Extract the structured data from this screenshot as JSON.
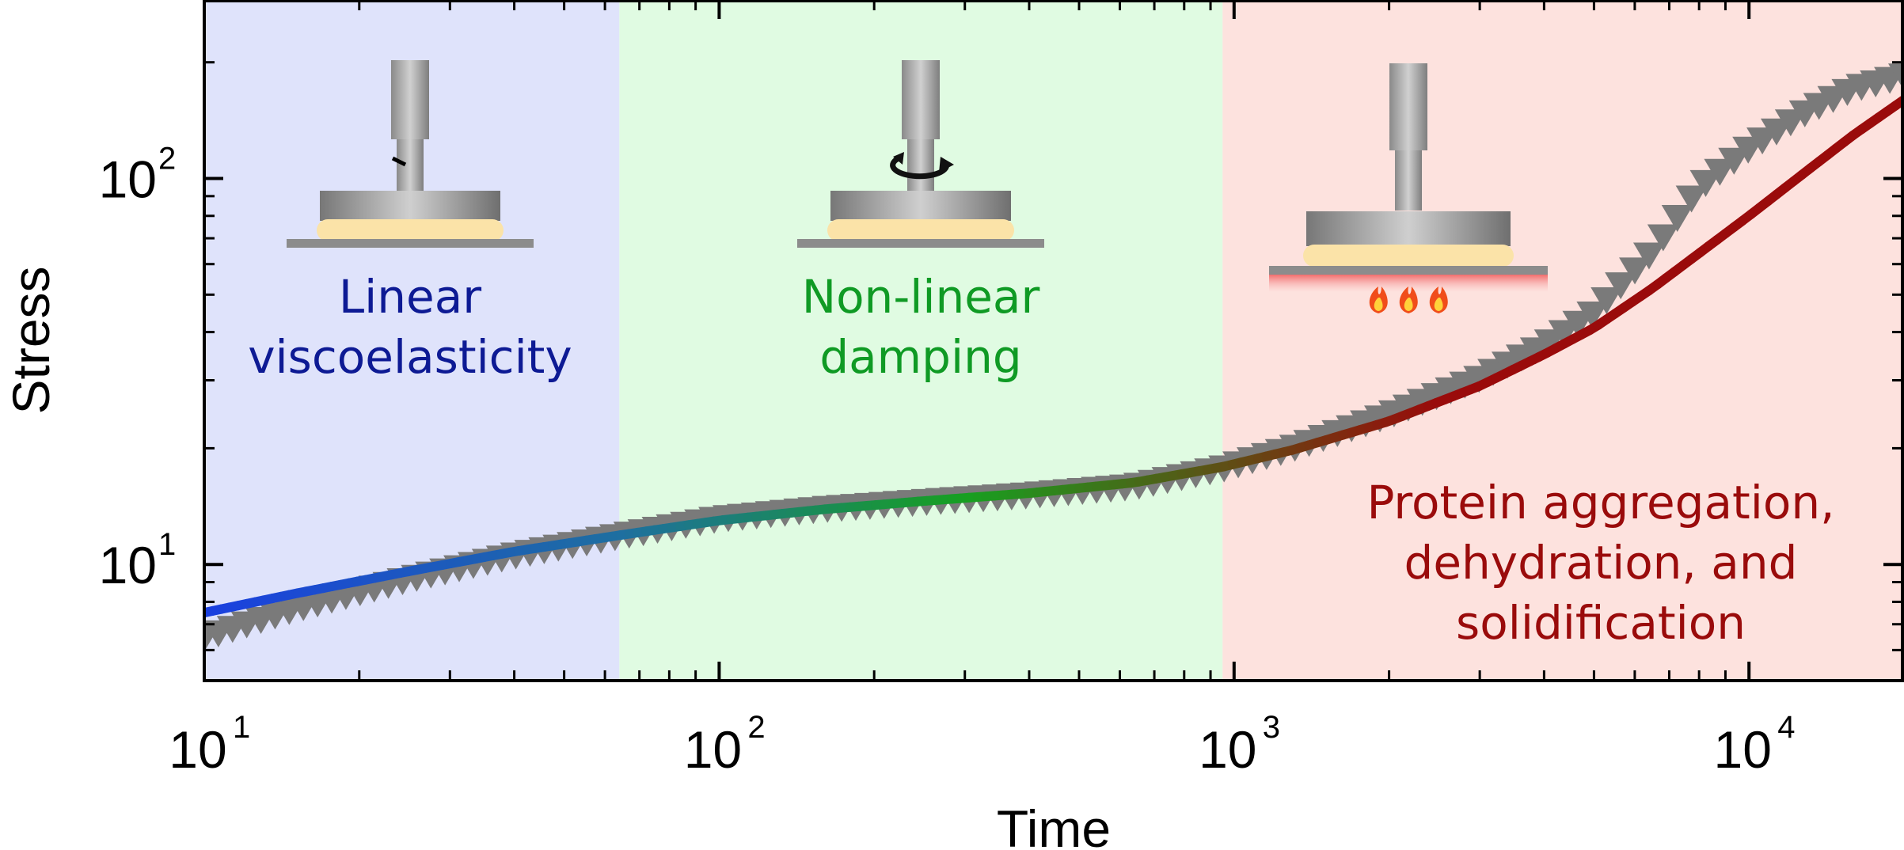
{
  "chart_data": {
    "type": "scatter",
    "xlabel": "Time",
    "ylabel": "Stress",
    "xscale": "log",
    "yscale": "log",
    "xlim": [
      10,
      20000
    ],
    "ylim": [
      5,
      290
    ],
    "x_ticks": [
      {
        "base": "10",
        "exp": "1"
      },
      {
        "base": "10",
        "exp": "2"
      },
      {
        "base": "10",
        "exp": "3"
      },
      {
        "base": "10",
        "exp": "4"
      }
    ],
    "y_ticks": [
      {
        "base": "10",
        "exp": "1"
      },
      {
        "base": "10",
        "exp": "2"
      }
    ],
    "regions": [
      {
        "x_range": [
          10,
          64
        ],
        "color": "#dfe3fb",
        "label_lines": [
          "Linear",
          "viscoelasticity"
        ],
        "label_color": "#0d1a94"
      },
      {
        "x_range": [
          64,
          950
        ],
        "color": "#e0fbe2",
        "label_lines": [
          "Non-linear",
          "damping"
        ],
        "label_color": "#0f9a24"
      },
      {
        "x_range": [
          950,
          20000
        ],
        "color": "#fde2de",
        "label_lines": [
          "Protein aggregation,",
          "dehydration, and",
          "solidification"
        ],
        "label_color": "#9a0b0b"
      }
    ],
    "series": [
      {
        "kind": "markers",
        "marker": "triangle-down",
        "color": "#7a7a7a",
        "x": [
          10,
          15,
          25,
          40,
          64,
          100,
          160,
          250,
          400,
          640,
          950,
          1300,
          2000,
          3000,
          4000,
          5000,
          6500,
          8000,
          10000,
          13000,
          16000,
          20000
        ],
        "y": [
          6.5,
          7.7,
          9.2,
          10.6,
          11.9,
          13.2,
          14.0,
          14.6,
          15.2,
          16.0,
          17.8,
          20.1,
          24.5,
          30.5,
          37.0,
          45.0,
          65.0,
          95.0,
          120.0,
          150.0,
          172.0,
          185.0
        ]
      },
      {
        "kind": "line",
        "colors": [
          "#1a3fe0",
          "#17a020",
          "#9a0b0b"
        ],
        "x": [
          10,
          15,
          25,
          40,
          64,
          100,
          160,
          250,
          400,
          640,
          950,
          1300,
          2000,
          3000,
          4000,
          5000,
          6500,
          8000,
          10000,
          13000,
          16000,
          20000
        ],
        "y": [
          7.5,
          8.4,
          9.6,
          10.8,
          11.9,
          13.0,
          13.9,
          14.6,
          15.3,
          16.3,
          17.9,
          19.8,
          23.5,
          29.0,
          35.0,
          41.0,
          52.0,
          64.0,
          80.0,
          105.0,
          130.0,
          160.0
        ]
      }
    ]
  },
  "icons": {
    "rheometer": "rheometer-illustration-icon",
    "rotation": "rotation-arrow-icon",
    "flame": "flame-icon"
  }
}
